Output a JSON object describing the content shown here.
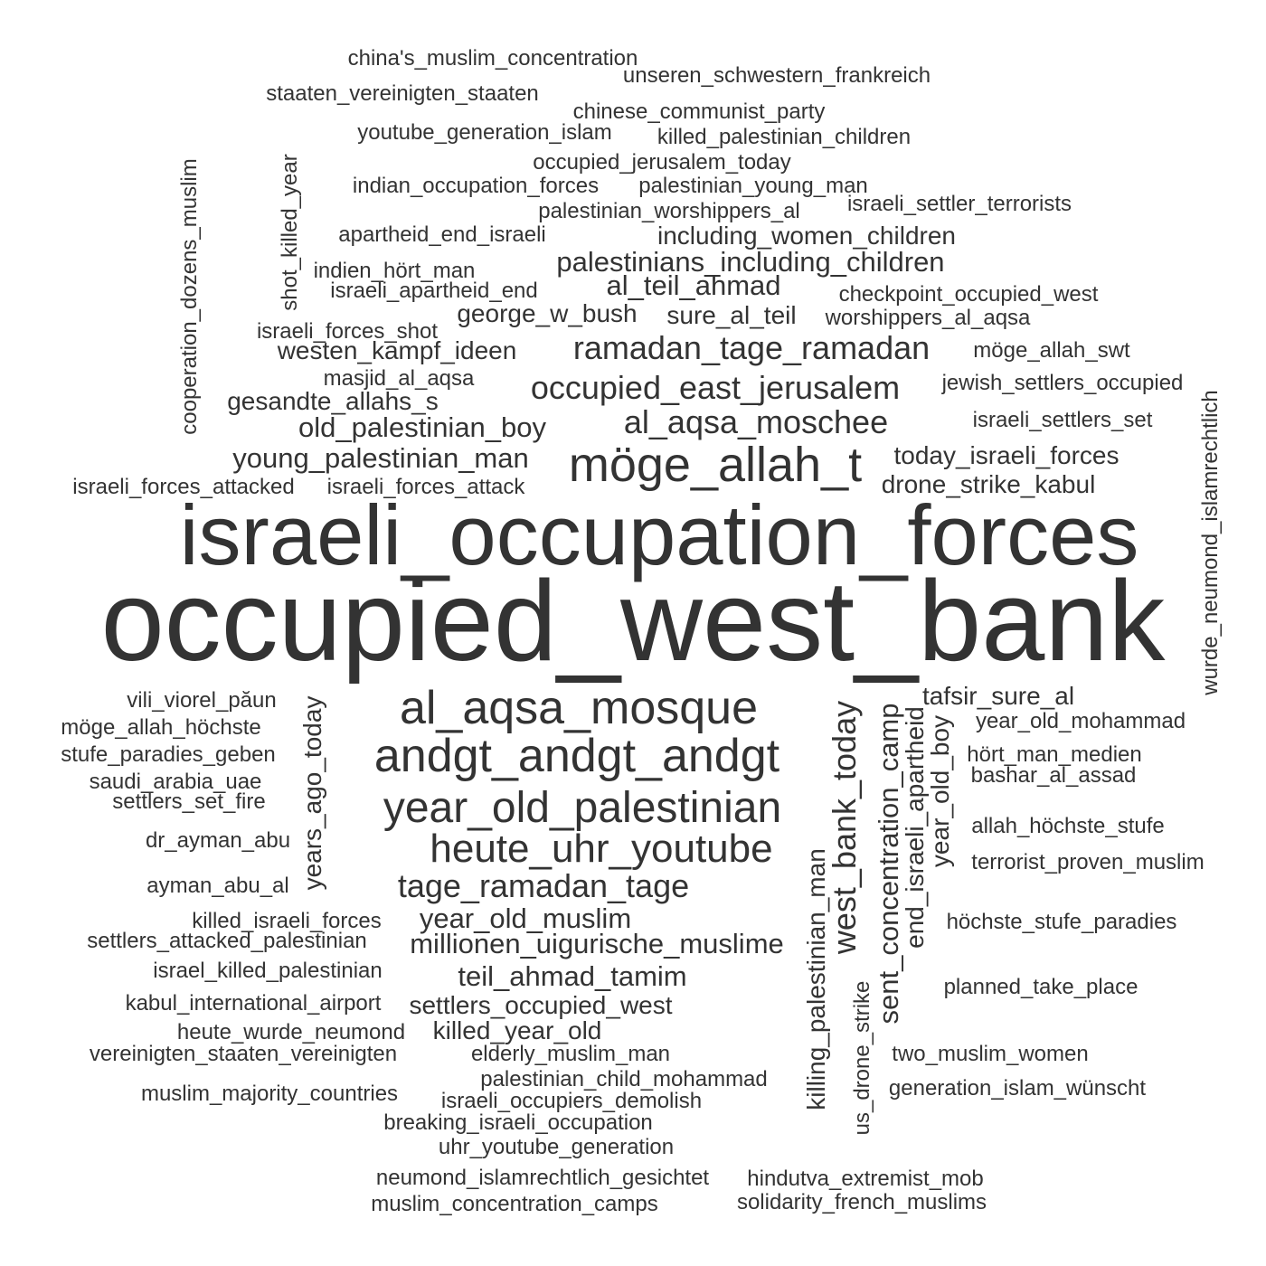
{
  "text_color": "#333333",
  "background": "#ffffff",
  "words": [
    "china's_muslim_concentration",
    "unseren_schwestern_frankreich",
    "staaten_vereinigten_staaten",
    "chinese_communist_party",
    "youtube_generation_islam",
    "killed_palestinian_children",
    "occupied_jerusalem_today",
    "indian_occupation_forces",
    "palestinian_young_man",
    "israeli_settler_terrorists",
    "palestinian_worshippers_al",
    "apartheid_end_israeli",
    "including_women_children",
    "palestinians_including_children",
    "indien_hört_man",
    "israeli_apartheid_end",
    "al_teil_ahmad",
    "checkpoint_occupied_west",
    "george_w_bush",
    "sure_al_teil",
    "worshippers_al_aqsa",
    "israeli_forces_shot",
    "westen_kampf_ideen",
    "ramadan_tage_ramadan",
    "möge_allah_swt",
    "masjid_al_aqsa",
    "occupied_east_jerusalem",
    "jewish_settlers_occupied",
    "gesandte_allahs_s",
    "old_palestinian_boy",
    "al_aqsa_moschee",
    "israeli_settlers_set",
    "young_palestinian_man",
    "möge_allah_t",
    "today_israeli_forces",
    "israeli_forces_attacked",
    "israeli_forces_attack",
    "drone_strike_kabul",
    "israeli_occupation_forces",
    "occupied_west_bank",
    "cooperation_dozens_muslim",
    "shot_killed_year",
    "wurde_neumond_islamrechtlich",
    "vili_viorel_păun",
    "al_aqsa_mosque",
    "tafsir_sure_al",
    "möge_allah_höchste",
    "year_old_mohammad",
    "stufe_paradies_geben",
    "andgt_andgt_andgt",
    "hört_man_medien",
    "saudi_arabia_uae",
    "bashar_al_assad",
    "settlers_set_fire",
    "year_old_palestinian",
    "allah_höchste_stufe",
    "dr_ayman_abu",
    "heute_uhr_youtube",
    "terrorist_proven_muslim",
    "ayman_abu_al",
    "tage_ramadan_tage",
    "killed_israeli_forces",
    "year_old_muslim",
    "höchste_stufe_paradies",
    "settlers_attacked_palestinian",
    "millionen_uigurische_muslime",
    "israel_killed_palestinian",
    "teil_ahmad_tamim",
    "planned_take_place",
    "kabul_international_airport",
    "settlers_occupied_west",
    "heute_wurde_neumond",
    "killed_year_old",
    "vereinigten_staaten_vereinigten",
    "elderly_muslim_man",
    "two_muslim_women",
    "palestinian_child_mohammad",
    "generation_islam_wünscht",
    "muslim_majority_countries",
    "israeli_occupiers_demolish",
    "breaking_israeli_occupation",
    "uhr_youtube_generation",
    "neumond_islamrechtlich_gesichtet",
    "hindutva_extremist_mob",
    "muslim_concentration_camps",
    "solidarity_french_muslims",
    "years_ago_today",
    "west_bank_today",
    "sent_concentration_camp",
    "end_israeli_apartheid",
    "year_old_boy",
    "killing_palestinian_man",
    "us_drone_strike"
  ]
}
